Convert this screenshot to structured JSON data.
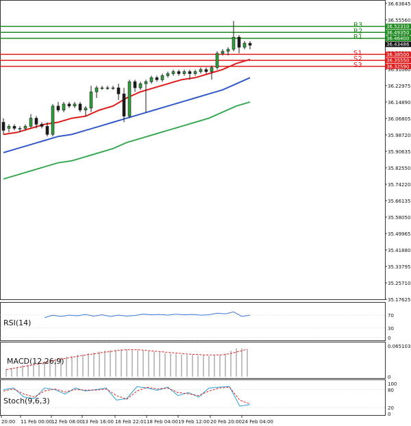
{
  "chart_data": [
    {
      "type": "candlestick",
      "panel": "price",
      "ylim": [
        35.17625,
        36.63645
      ],
      "y_ticks": [
        "36.63645",
        "36.55560",
        "36.47475",
        "36.39390",
        "36.31060",
        "36.22975",
        "36.14890",
        "36.06805",
        "35.98720",
        "35.90635",
        "35.82550",
        "35.74220",
        "35.66135",
        "35.58050",
        "35.49965",
        "35.41880",
        "35.33795",
        "35.25710",
        "35.17625"
      ],
      "x_ticks": [
        "20:00",
        "11 Feb 00:00",
        "12 Feb 08:00",
        "13 Feb 16:00",
        "16 Feb 22:01",
        "18 Feb 04:00",
        "19 Feb 12:00",
        "20 Feb 20:00",
        "24 Feb 04:00"
      ],
      "current_price": "36.43486",
      "levels": [
        {
          "name": "R3",
          "value": 36.5231,
          "label": "36.52310",
          "color": "#1f8a1f"
        },
        {
          "name": "R2",
          "value": 36.4935,
          "label": "36.49350",
          "color": "#1f8a1f"
        },
        {
          "name": "R1",
          "value": 36.464,
          "label": "36.46400",
          "color": "#1f8a1f"
        },
        {
          "name": "S1",
          "value": 36.385,
          "label": "36.38500",
          "color": "#e01b1b"
        },
        {
          "name": "S2",
          "value": 36.3555,
          "label": "36.35550",
          "color": "#e01b1b"
        },
        {
          "name": "S3",
          "value": 36.3259,
          "label": "36.32590",
          "color": "#e01b1b"
        }
      ],
      "moving_averages": [
        {
          "color": "#e01b1b",
          "x": [
            0,
            20,
            40,
            60,
            80,
            100,
            120,
            140,
            160,
            180,
            200,
            220,
            240,
            260,
            280,
            300,
            320,
            340,
            360
          ],
          "values": [
            35.99,
            36.0,
            36.02,
            36.04,
            36.05,
            36.07,
            36.08,
            36.11,
            36.13,
            36.17,
            36.2,
            36.22,
            36.24,
            36.26,
            36.27,
            36.29,
            36.31,
            36.34,
            36.36
          ]
        },
        {
          "color": "#3358c8",
          "x": [
            0,
            20,
            40,
            60,
            80,
            100,
            120,
            140,
            160,
            180,
            200,
            220,
            240,
            260,
            280,
            300,
            320,
            340,
            360
          ],
          "values": [
            35.9,
            35.92,
            35.94,
            35.96,
            35.98,
            35.99,
            36.01,
            36.03,
            36.05,
            36.07,
            36.09,
            36.11,
            36.13,
            36.15,
            36.17,
            36.19,
            36.21,
            36.24,
            36.27
          ]
        },
        {
          "color": "#3aa956",
          "x": [
            0,
            20,
            40,
            60,
            80,
            100,
            120,
            140,
            160,
            180,
            200,
            220,
            240,
            260,
            280,
            300,
            320,
            340,
            360
          ],
          "values": [
            35.77,
            35.79,
            35.81,
            35.83,
            35.85,
            35.86,
            35.88,
            35.9,
            35.92,
            35.95,
            35.97,
            35.99,
            36.01,
            36.03,
            36.05,
            36.07,
            36.1,
            36.13,
            36.15
          ]
        }
      ],
      "candles": [
        [
          0,
          36.05,
          36.07,
          35.99,
          36.01
        ],
        [
          8,
          36.02,
          36.04,
          36.0,
          36.03
        ],
        [
          16,
          36.03,
          36.04,
          36.01,
          36.02
        ],
        [
          24,
          36.02,
          36.03,
          36.0,
          36.02
        ],
        [
          32,
          36.02,
          36.04,
          36.01,
          36.03
        ],
        [
          40,
          36.03,
          36.09,
          36.02,
          36.07
        ],
        [
          48,
          36.07,
          36.08,
          36.02,
          36.04
        ],
        [
          56,
          36.04,
          36.05,
          36.02,
          36.03
        ],
        [
          64,
          36.03,
          36.05,
          35.98,
          35.99
        ],
        [
          72,
          35.99,
          36.14,
          35.98,
          36.13
        ],
        [
          80,
          36.13,
          36.15,
          36.1,
          36.11
        ],
        [
          88,
          36.11,
          36.15,
          36.1,
          36.14
        ],
        [
          96,
          36.14,
          36.15,
          36.12,
          36.13
        ],
        [
          104,
          36.13,
          36.15,
          36.12,
          36.14
        ],
        [
          112,
          36.14,
          36.15,
          36.1,
          36.11
        ],
        [
          120,
          36.11,
          36.13,
          36.08,
          36.12
        ],
        [
          128,
          36.12,
          36.23,
          36.1,
          36.2
        ],
        [
          136,
          36.2,
          36.23,
          36.17,
          36.22
        ],
        [
          144,
          36.22,
          36.23,
          36.21,
          36.22
        ],
        [
          152,
          36.22,
          36.23,
          36.21,
          36.22
        ],
        [
          160,
          36.22,
          36.23,
          36.21,
          36.22
        ],
        [
          168,
          36.22,
          36.24,
          36.16,
          36.19
        ],
        [
          176,
          36.19,
          36.22,
          36.05,
          36.08
        ],
        [
          184,
          36.08,
          36.26,
          36.07,
          36.25
        ],
        [
          192,
          36.25,
          36.26,
          36.2,
          36.22
        ],
        [
          200,
          36.22,
          36.25,
          36.21,
          36.24
        ],
        [
          208,
          36.24,
          36.26,
          36.1,
          36.25
        ],
        [
          216,
          36.25,
          36.28,
          36.24,
          36.27
        ],
        [
          224,
          36.27,
          36.28,
          36.25,
          36.26
        ],
        [
          232,
          36.26,
          36.29,
          36.25,
          36.28
        ],
        [
          240,
          36.28,
          36.3,
          36.27,
          36.29
        ],
        [
          248,
          36.29,
          36.31,
          36.28,
          36.3
        ],
        [
          256,
          36.3,
          36.31,
          36.28,
          36.29
        ],
        [
          264,
          36.29,
          36.31,
          36.28,
          36.3
        ],
        [
          272,
          36.3,
          36.31,
          36.26,
          36.29
        ],
        [
          280,
          36.29,
          36.31,
          36.28,
          36.3
        ],
        [
          288,
          36.3,
          36.32,
          36.29,
          36.31
        ],
        [
          296,
          36.31,
          36.32,
          36.29,
          36.3
        ],
        [
          304,
          36.3,
          36.33,
          36.26,
          36.32
        ],
        [
          312,
          36.32,
          36.4,
          36.31,
          36.39
        ],
        [
          320,
          36.39,
          36.41,
          36.38,
          36.4
        ],
        [
          328,
          36.4,
          36.42,
          36.38,
          36.41
        ],
        [
          336,
          36.41,
          36.55,
          36.4,
          36.47
        ],
        [
          344,
          36.47,
          36.48,
          36.39,
          36.42
        ],
        [
          352,
          36.42,
          36.45,
          36.41,
          36.44
        ],
        [
          360,
          36.44,
          36.45,
          36.41,
          36.43
        ]
      ]
    },
    {
      "type": "line",
      "panel": "rsi",
      "title": "RSI(14)",
      "ylim": [
        0,
        100
      ],
      "y_ticks": [
        "70",
        "30",
        "0"
      ],
      "series": [
        {
          "color": "#3a78d8",
          "x": [
            60,
            72,
            84,
            96,
            108,
            120,
            132,
            144,
            156,
            168,
            180,
            192,
            204,
            216,
            228,
            240,
            252,
            264,
            276,
            288,
            300,
            312,
            324,
            336,
            348,
            360
          ],
          "values": [
            62,
            70,
            66,
            70,
            68,
            72,
            67,
            71,
            66,
            70,
            67,
            69,
            73,
            71,
            72,
            70,
            73,
            71,
            72,
            70,
            71,
            76,
            74,
            80,
            66,
            70
          ]
        }
      ]
    },
    {
      "type": "bar",
      "panel": "macd",
      "title": "MACD(12,26,9)",
      "y_ticks": [
        "0.065103",
        "0"
      ],
      "max_value": 0.065103,
      "bar_x": [
        4,
        12,
        20,
        28,
        36,
        44,
        52,
        60,
        68,
        76,
        84,
        92,
        100,
        108,
        116,
        124,
        132,
        140,
        148,
        156,
        164,
        172,
        180,
        188,
        196,
        204,
        212,
        220,
        228,
        236,
        244,
        252,
        260,
        268,
        276,
        284,
        292,
        300,
        308,
        316,
        324,
        332,
        340,
        348,
        356
      ],
      "values": [
        0.016,
        0.019,
        0.021,
        0.024,
        0.026,
        0.028,
        0.03,
        0.033,
        0.036,
        0.038,
        0.04,
        0.042,
        0.044,
        0.046,
        0.047,
        0.049,
        0.051,
        0.053,
        0.055,
        0.056,
        0.057,
        0.058,
        0.058,
        0.057,
        0.056,
        0.055,
        0.054,
        0.053,
        0.052,
        0.05,
        0.049,
        0.048,
        0.047,
        0.046,
        0.046,
        0.045,
        0.045,
        0.044,
        0.045,
        0.046,
        0.049,
        0.055,
        0.06,
        0.06,
        0.058
      ],
      "signal": [
        0.015,
        0.017,
        0.019,
        0.021,
        0.023,
        0.025,
        0.027,
        0.03,
        0.032,
        0.035,
        0.037,
        0.039,
        0.041,
        0.043,
        0.045,
        0.047,
        0.048,
        0.05,
        0.052,
        0.053,
        0.055,
        0.056,
        0.057,
        0.057,
        0.057,
        0.056,
        0.055,
        0.054,
        0.053,
        0.052,
        0.051,
        0.05,
        0.049,
        0.048,
        0.047,
        0.047,
        0.046,
        0.046,
        0.046,
        0.046,
        0.047,
        0.049,
        0.052,
        0.055,
        0.058
      ]
    },
    {
      "type": "line",
      "panel": "stochastic",
      "title": "Stoch(9,6,3)",
      "ylim": [
        0,
        100
      ],
      "y_ticks": [
        "100",
        "80",
        "20",
        "0"
      ],
      "series": [
        {
          "color": "#2a9fd6",
          "x": [
            0,
            15,
            30,
            45,
            60,
            75,
            90,
            105,
            120,
            135,
            150,
            165,
            180,
            195,
            210,
            225,
            240,
            255,
            270,
            285,
            300,
            315,
            330,
            345,
            360
          ],
          "values": [
            80,
            85,
            55,
            50,
            85,
            80,
            65,
            85,
            75,
            80,
            85,
            45,
            50,
            90,
            85,
            78,
            88,
            60,
            70,
            55,
            85,
            88,
            90,
            25,
            30
          ]
        },
        {
          "color": "#e01b1b",
          "x": [
            0,
            15,
            30,
            45,
            60,
            75,
            90,
            105,
            120,
            135,
            150,
            165,
            180,
            195,
            210,
            225,
            240,
            255,
            270,
            285,
            300,
            315,
            330,
            345,
            360
          ],
          "values": [
            75,
            82,
            65,
            55,
            75,
            82,
            72,
            80,
            78,
            78,
            82,
            60,
            48,
            75,
            88,
            82,
            85,
            70,
            66,
            60,
            75,
            85,
            88,
            45,
            32
          ]
        }
      ]
    }
  ]
}
